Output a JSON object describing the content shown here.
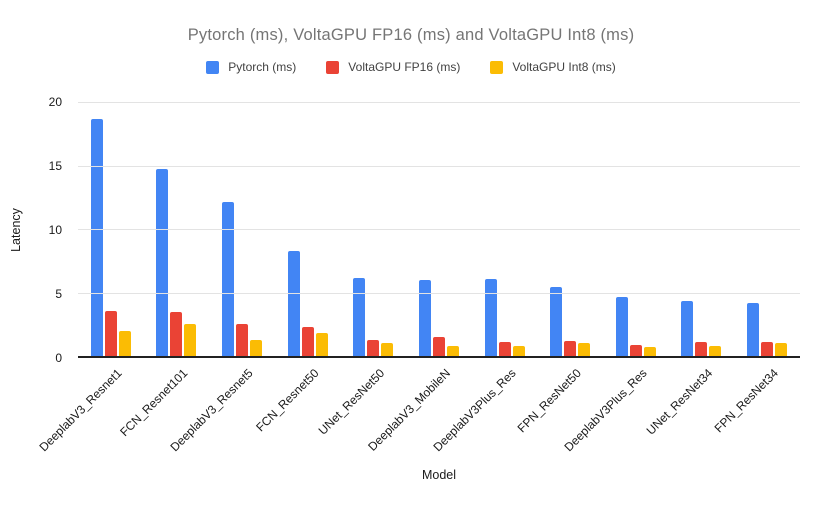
{
  "title": "Pytorch (ms), VoltaGPU FP16 (ms) and VoltaGPU Int8 (ms)",
  "colors": {
    "pytorch_blue": "#4285F4",
    "fp16_red": "#EA4335",
    "int8_yellow": "#FBBC04",
    "title_text": "#757575",
    "gridline": "#e3e3e3",
    "axis_line": "#212121"
  },
  "chart_data": {
    "type": "bar",
    "title": "Pytorch (ms), VoltaGPU FP16 (ms) and VoltaGPU Int8 (ms)",
    "xlabel": "Model",
    "ylabel": "Latency",
    "ylim": [
      0,
      20
    ],
    "y_ticks": [
      0,
      5,
      10,
      15,
      20
    ],
    "grid": true,
    "legend_position": "top",
    "categories": [
      "DeeplabV3_Resnet1",
      "FCN_Resnet101",
      "DeeplabV3_Resnet5",
      "FCN_Resnet50",
      "UNet_ResNet50",
      "DeeplabV3_MobileN",
      "DeeplabV3Plus_Res",
      "FPN_ResNet50",
      "DeeplabV3Plus_Res",
      "UNet_ResNet34",
      "FPN_ResNet34"
    ],
    "series": [
      {
        "name": "Pytorch (ms)",
        "color": "#4285F4",
        "values": [
          18.7,
          14.7,
          12.1,
          8.3,
          6.15,
          6.0,
          6.05,
          5.4,
          4.65,
          4.35,
          4.2
        ]
      },
      {
        "name": "VoltaGPU FP16 (ms)",
        "color": "#EA4335",
        "values": [
          3.55,
          3.45,
          2.5,
          2.25,
          1.25,
          1.5,
          1.1,
          1.2,
          0.85,
          1.1,
          1.1
        ]
      },
      {
        "name": "VoltaGPU Int8 (ms)",
        "color": "#FBBC04",
        "values": [
          2.0,
          2.5,
          1.25,
          1.8,
          1.0,
          0.75,
          0.75,
          1.0,
          0.7,
          0.75,
          1.0
        ]
      }
    ]
  }
}
